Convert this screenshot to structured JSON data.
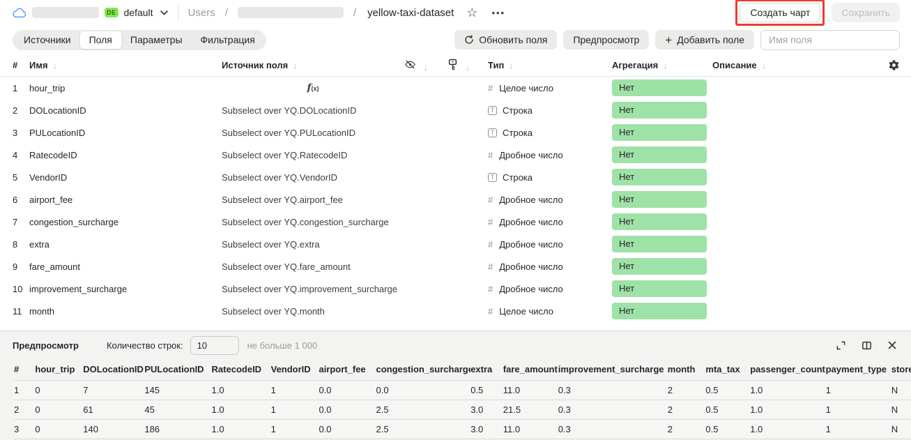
{
  "topbar": {
    "badge": "DE",
    "env": "default",
    "breadcrumb_root": "Users",
    "breadcrumb_sep": "/",
    "dataset_name": "yellow-taxi-dataset",
    "ellipsis": "•••",
    "create_chart_label": "Создать чарт",
    "save_label": "Сохранить"
  },
  "tabs": [
    {
      "label": "Источники"
    },
    {
      "label": "Поля"
    },
    {
      "label": "Параметры"
    },
    {
      "label": "Фильтрация"
    }
  ],
  "toolbar": {
    "refresh_label": "Обновить поля",
    "preview_label": "Предпросмотр",
    "add_field_label": "Добавить поле",
    "add_field_plus": "+",
    "field_name_placeholder": "Имя поля"
  },
  "fields_table": {
    "headers": {
      "num": "#",
      "name": "Имя",
      "source": "Источник поля",
      "type": "Тип",
      "aggregation": "Агрегация",
      "description": "Описание"
    },
    "sort_arrow": "↓",
    "rows": [
      {
        "num": "1",
        "name": "hour_trip",
        "source": "",
        "formula": true,
        "type_kind": "int",
        "type": "Целое число",
        "aggregation": "Нет"
      },
      {
        "num": "2",
        "name": "DOLocationID",
        "source": "Subselect over YQ.DOLocationID",
        "formula": false,
        "type_kind": "str",
        "type": "Строка",
        "aggregation": "Нет"
      },
      {
        "num": "3",
        "name": "PULocationID",
        "source": "Subselect over YQ.PULocationID",
        "formula": false,
        "type_kind": "str",
        "type": "Строка",
        "aggregation": "Нет"
      },
      {
        "num": "4",
        "name": "RatecodeID",
        "source": "Subselect over YQ.RatecodeID",
        "formula": false,
        "type_kind": "float",
        "type": "Дробное число",
        "aggregation": "Нет"
      },
      {
        "num": "5",
        "name": "VendorID",
        "source": "Subselect over YQ.VendorID",
        "formula": false,
        "type_kind": "str",
        "type": "Строка",
        "aggregation": "Нет"
      },
      {
        "num": "6",
        "name": "airport_fee",
        "source": "Subselect over YQ.airport_fee",
        "formula": false,
        "type_kind": "float",
        "type": "Дробное число",
        "aggregation": "Нет"
      },
      {
        "num": "7",
        "name": "congestion_surcharge",
        "source": "Subselect over YQ.congestion_surcharge",
        "formula": false,
        "type_kind": "float",
        "type": "Дробное число",
        "aggregation": "Нет"
      },
      {
        "num": "8",
        "name": "extra",
        "source": "Subselect over YQ.extra",
        "formula": false,
        "type_kind": "float",
        "type": "Дробное число",
        "aggregation": "Нет"
      },
      {
        "num": "9",
        "name": "fare_amount",
        "source": "Subselect over YQ.fare_amount",
        "formula": false,
        "type_kind": "float",
        "type": "Дробное число",
        "aggregation": "Нет"
      },
      {
        "num": "10",
        "name": "improvement_surcharge",
        "source": "Subselect over YQ.improvement_surcharge",
        "formula": false,
        "type_kind": "float",
        "type": "Дробное число",
        "aggregation": "Нет"
      },
      {
        "num": "11",
        "name": "month",
        "source": "Subselect over YQ.month",
        "formula": false,
        "type_kind": "int",
        "type": "Целое число",
        "aggregation": "Нет"
      }
    ]
  },
  "preview": {
    "title": "Предпросмотр",
    "rows_label": "Количество строк:",
    "rows_value": "10",
    "rows_hint": "не больше 1 000",
    "table": {
      "headers": [
        "#",
        "hour_trip",
        "DOLocationID",
        "PULocationID",
        "RatecodeID",
        "VendorID",
        "airport_fee",
        "congestion_surcharge",
        "extra",
        "fare_amount",
        "improvement_surcharge",
        "month",
        "mta_tax",
        "passenger_count",
        "payment_type",
        "store_an"
      ],
      "rows": [
        [
          "1",
          "0",
          "7",
          "145",
          "1.0",
          "1",
          "0.0",
          "0.0",
          "0.5",
          "11.0",
          "0.3",
          "2",
          "0.5",
          "1.0",
          "1",
          "N"
        ],
        [
          "2",
          "0",
          "61",
          "45",
          "1.0",
          "1",
          "0.0",
          "2.5",
          "3.0",
          "21.5",
          "0.3",
          "2",
          "0.5",
          "1.0",
          "1",
          "N"
        ],
        [
          "3",
          "0",
          "140",
          "186",
          "1.0",
          "1",
          "0.0",
          "2.5",
          "3.0",
          "11.0",
          "0.3",
          "2",
          "0.5",
          "1.0",
          "1",
          "N"
        ]
      ]
    }
  },
  "colors": {
    "aggregation_pill": "#9fe2a7",
    "badge_green": "#8ce44f",
    "annotation_red": "#ef3b30",
    "cloud_blue": "#5c9bff"
  }
}
